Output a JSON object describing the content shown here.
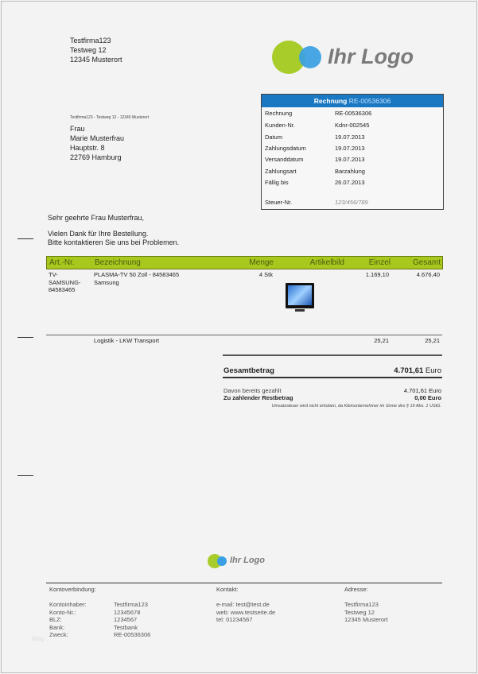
{
  "sender": {
    "lines": [
      "Testfirma123",
      "Testweg 12",
      "12345 Musterort"
    ],
    "return_line": "Testfirma123 - Testweg 12 - 12345 Musterort"
  },
  "logo": {
    "text": "Ihr Logo",
    "green": "#a8cc2a",
    "blue": "#3a9fe4"
  },
  "recipient": {
    "lines": [
      "Frau",
      "Marie Musterfrau",
      "Hauptstr. 8",
      "22769 Hamburg"
    ]
  },
  "infobox": {
    "title_label": "Rechnung",
    "title_number": "RE-00536306",
    "header_color": "#1a78c2",
    "rows": [
      {
        "label": "Rechnung",
        "value": "RE-00536306"
      },
      {
        "label": "Kunden-Nr.",
        "value": "Kdnr-002545"
      },
      {
        "label": "Datum",
        "value": "19.07.2013"
      },
      {
        "label": "Zahlungsdatum",
        "value": "19.07.2013"
      },
      {
        "label": "Versanddatum",
        "value": "19.07.2013"
      },
      {
        "label": "Zahlungsart",
        "value": "Barzahlung"
      },
      {
        "label": "Fällig bis",
        "value": "26.07.2013"
      }
    ],
    "tax": {
      "label": "Steuer-Nr.",
      "value": "123/456/789"
    }
  },
  "letter": {
    "greeting": "Sehr geehrte Frau Musterfrau,",
    "body": [
      "Vielen Dank für Ihre Bestellung.",
      "Bitte kontaktieren Sie uns bei Problemen."
    ]
  },
  "table": {
    "header_color": "#a8c81e",
    "headers": [
      "Art.-Nr.",
      "Bezeichnung",
      "Menge",
      "Artikelbild",
      "Einzel",
      "Gesamt"
    ],
    "rows": [
      {
        "art_lines": [
          "TV-",
          "SAMSUNG-",
          "84583465"
        ],
        "desc_lines": [
          "PLASMA-TV 50 Zoll - 84583465",
          "Samsung"
        ],
        "qty": "4 Stk",
        "image": "tv-image",
        "unit": "1.169,10",
        "total": "4.676,40"
      },
      {
        "desc": "Logistik - LKW Transport",
        "unit": "25,21",
        "total": "25,21"
      }
    ]
  },
  "totals": {
    "total_label": "Gesamtbetrag",
    "total_value": "4.701,61",
    "currency": "Euro",
    "paid_label": "Davon bereits gezahlt",
    "paid_value": "4.701,61",
    "due_label": "Zu zahlender Restbetrag",
    "due_value": "0,00",
    "tax_note": "Umsatzsteuer wird nicht erhoben, da Kleinunternehmer im Sinne des § 19 Abs. 1 UStG."
  },
  "footer": {
    "bank": {
      "heading": "Kontoverbindung:",
      "labels": [
        "Kontoinhaber:",
        "Konto-Nr.:",
        "BLZ:",
        "Bank:",
        "Zweck:"
      ],
      "values": [
        "Testfirma123",
        "12345678",
        "1234567",
        "Testbank",
        "RE-00536306"
      ]
    },
    "contact": {
      "heading": "Kontakt:",
      "lines": [
        "e-mail: test@test.de",
        "web: www.testseite.de",
        "tel: 01234567"
      ]
    },
    "address": {
      "heading": "Adresse:",
      "lines": [
        "Testfirma123",
        "Testweg 12",
        "12345 Musterort"
      ]
    },
    "watermark": "blog"
  }
}
